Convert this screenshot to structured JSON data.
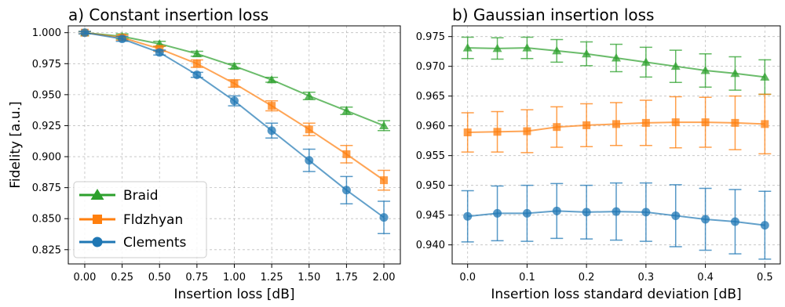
{
  "chart_data": [
    {
      "type": "line",
      "title": "a) Constant insertion loss",
      "xlabel": "Insertion loss [dB]",
      "ylabel": "Fidelity [a.u.]",
      "x": [
        0.0,
        0.25,
        0.5,
        0.75,
        1.0,
        1.25,
        1.5,
        1.75,
        2.0
      ],
      "x_ticks": [
        "0.00",
        "0.25",
        "0.50",
        "0.75",
        "1.00",
        "1.25",
        "1.50",
        "1.75",
        "2.00"
      ],
      "y_ticks": [
        "0.825",
        "0.850",
        "0.875",
        "0.900",
        "0.925",
        "0.950",
        "0.975",
        "1.000"
      ],
      "xlim": [
        -0.11,
        2.11
      ],
      "ylim": [
        0.8135,
        1.0055
      ],
      "grid": true,
      "legend": "lower-left",
      "series": [
        {
          "name": "Braid",
          "color": "#2ca02c",
          "marker": "triangle",
          "values": [
            1.0,
            0.997,
            0.991,
            0.983,
            0.973,
            0.962,
            0.949,
            0.937,
            0.925
          ],
          "err": [
            0.001,
            0.002,
            0.002,
            0.002,
            0.002,
            0.002,
            0.003,
            0.003,
            0.004
          ]
        },
        {
          "name": "Fldzhyan",
          "color": "#ff7f0e",
          "marker": "square",
          "values": [
            1.0,
            0.996,
            0.987,
            0.975,
            0.959,
            0.941,
            0.922,
            0.902,
            0.881
          ],
          "err": [
            0.001,
            0.002,
            0.002,
            0.003,
            0.003,
            0.004,
            0.005,
            0.007,
            0.008
          ]
        },
        {
          "name": "Clements",
          "color": "#1f77b4",
          "marker": "circle",
          "values": [
            1.0,
            0.995,
            0.984,
            0.966,
            0.945,
            0.921,
            0.897,
            0.873,
            0.851
          ],
          "err": [
            0.001,
            0.002,
            0.002,
            0.002,
            0.004,
            0.006,
            0.009,
            0.011,
            0.013
          ]
        }
      ]
    },
    {
      "type": "line",
      "title": "b) Gaussian insertion loss",
      "xlabel": "Insertion loss standard deviation [dB]",
      "ylabel": "",
      "x": [
        0.0,
        0.05,
        0.1,
        0.15,
        0.2,
        0.25,
        0.3,
        0.35,
        0.4,
        0.45,
        0.5
      ],
      "x_ticks": [
        "0.0",
        "0.1",
        "0.2",
        "0.3",
        "0.4",
        "0.5"
      ],
      "x_tick_values": [
        0.0,
        0.1,
        0.2,
        0.3,
        0.4,
        0.5
      ],
      "y_ticks": [
        "0.940",
        "0.945",
        "0.950",
        "0.955",
        "0.960",
        "0.965",
        "0.970",
        "0.975"
      ],
      "xlim": [
        -0.026,
        0.526
      ],
      "ylim": [
        0.9368,
        0.9768
      ],
      "grid": true,
      "series": [
        {
          "name": "Braid",
          "color": "#2ca02c",
          "marker": "triangle",
          "values": [
            0.9731,
            0.973,
            0.9731,
            0.9726,
            0.9721,
            0.9714,
            0.9707,
            0.97,
            0.9693,
            0.9688,
            0.9682
          ],
          "err": [
            0.0018,
            0.0018,
            0.0018,
            0.0019,
            0.002,
            0.0023,
            0.0025,
            0.0027,
            0.0028,
            0.0028,
            0.0029
          ]
        },
        {
          "name": "Fldzhyan",
          "color": "#ff7f0e",
          "marker": "square",
          "values": [
            0.9589,
            0.959,
            0.9591,
            0.9598,
            0.9601,
            0.9603,
            0.9605,
            0.9606,
            0.9606,
            0.9605,
            0.9603
          ],
          "err": [
            0.0033,
            0.0034,
            0.0036,
            0.0034,
            0.0036,
            0.0036,
            0.0038,
            0.0043,
            0.0042,
            0.0045,
            0.005
          ]
        },
        {
          "name": "Clements",
          "color": "#1f77b4",
          "marker": "circle",
          "values": [
            0.9448,
            0.9453,
            0.9453,
            0.9457,
            0.9455,
            0.9456,
            0.9455,
            0.9449,
            0.9443,
            0.9439,
            0.9433
          ],
          "err": [
            0.0043,
            0.0046,
            0.0047,
            0.0046,
            0.0045,
            0.0048,
            0.0049,
            0.0052,
            0.0052,
            0.0054,
            0.0057
          ]
        }
      ]
    }
  ]
}
